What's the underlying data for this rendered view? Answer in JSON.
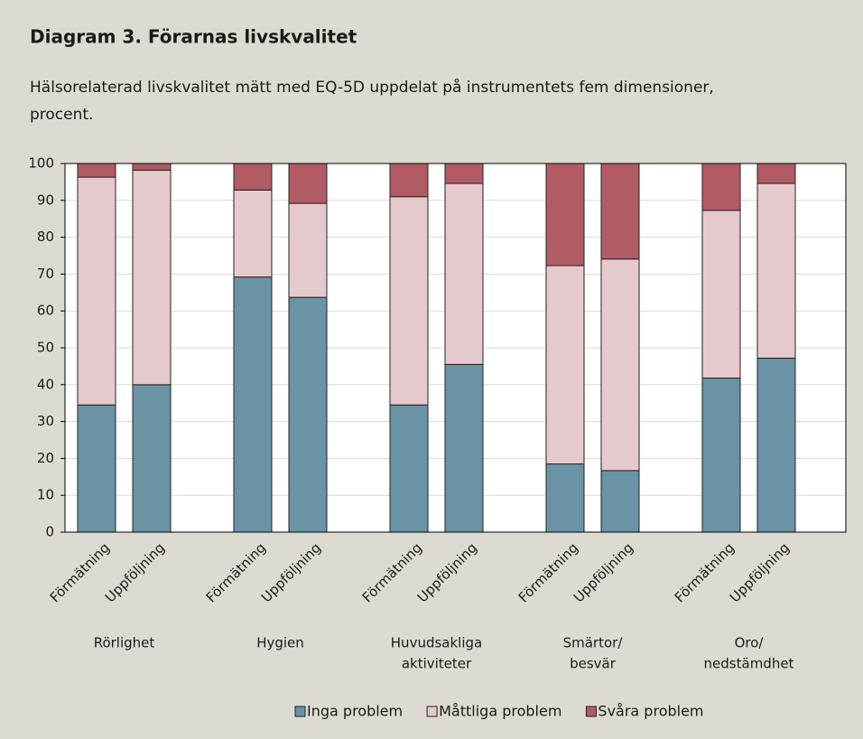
{
  "chart_data": {
    "type": "stacked_bar",
    "title": "Diagram 3. Förarnas livskvalitet",
    "subtitle": [
      "Hälsorelaterad livskvalitet mätt med EQ-5D uppdelat på instrumentets fem dimensioner,",
      "procent."
    ],
    "categories": [
      "Förmätning",
      "Uppföljning",
      "Förmätning",
      "Uppföljning",
      "Förmätning",
      "Uppföljning",
      "Förmätning",
      "Uppföljning",
      "Förmätning",
      "Uppföljning"
    ],
    "groups": [
      {
        "label": [
          "Rörlighet"
        ]
      },
      {
        "label": [
          "Hygien"
        ]
      },
      {
        "label": [
          "Huvudsakliga",
          "aktiviteter"
        ]
      },
      {
        "label": [
          "Smärtor/",
          "besvär"
        ]
      },
      {
        "label": [
          "Oro/",
          "nedstämdhet"
        ]
      }
    ],
    "series": [
      {
        "name": "Inga problem",
        "color": "#6b93a6",
        "values": [
          34.5,
          40,
          69.2,
          63.7,
          34.5,
          45.5,
          18.5,
          16.7,
          41.8,
          47.2
        ]
      },
      {
        "name": "Måttliga problem",
        "color": "#e6c9cd",
        "values": [
          61.8,
          58.2,
          23.6,
          25.5,
          56.5,
          49.1,
          53.8,
          57.4,
          45.5,
          47.4
        ]
      },
      {
        "name": "Svåra problem",
        "color": "#b15c65",
        "values": [
          3.7,
          1.8,
          7.2,
          10.8,
          9,
          5.4,
          27.7,
          25.9,
          12.7,
          5.4
        ]
      }
    ],
    "ylim": [
      0,
      100
    ],
    "yticks": [
      0,
      10,
      20,
      30,
      40,
      50,
      60,
      70,
      80,
      90,
      100
    ],
    "grid": true
  }
}
